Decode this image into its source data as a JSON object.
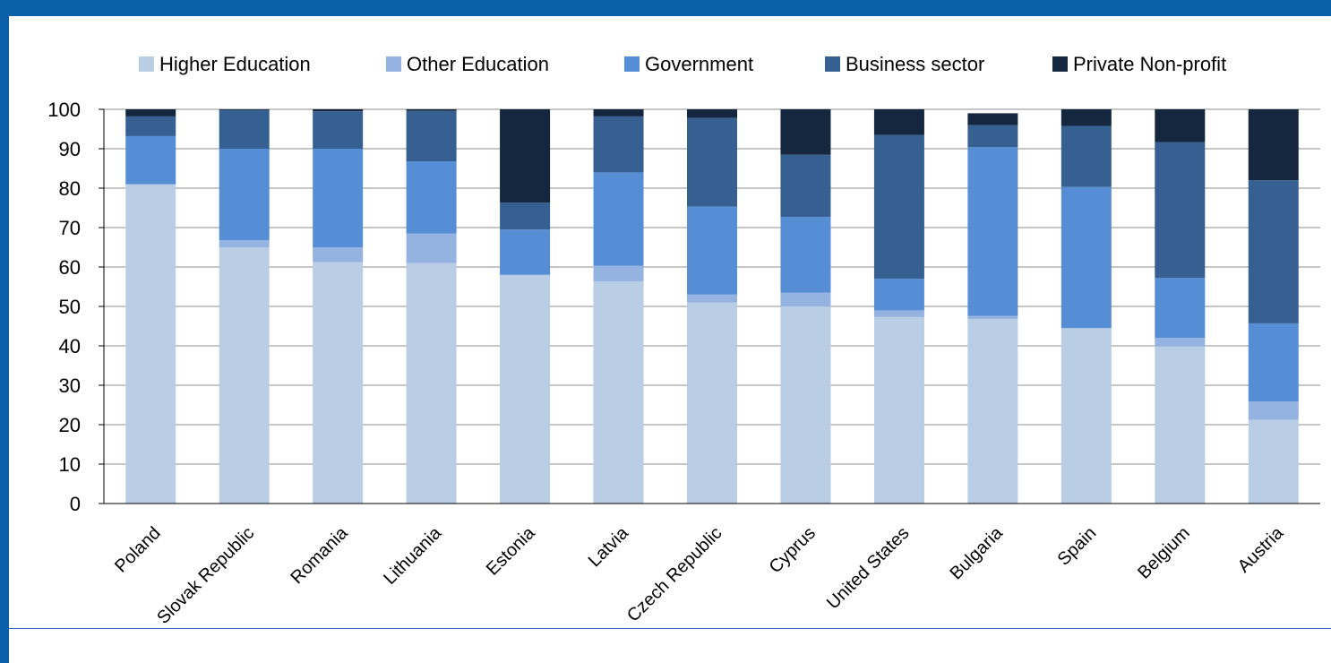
{
  "chart_data": {
    "type": "bar",
    "stacked": true,
    "categories": [
      "Poland",
      "Slovak Republic",
      "Romania",
      "Lithuania",
      "Estonia",
      "Latvia",
      "Czech Republic",
      "Cyprus",
      "United States",
      "Bulgaria",
      "Spain",
      "Belgium",
      "Austria"
    ],
    "series": [
      {
        "name": "Higher Education",
        "color": "#b9cde5",
        "values": [
          81,
          65,
          61.2,
          61,
          58,
          56.3,
          51,
          50,
          47.3,
          46.8,
          44.5,
          39.8,
          21.2
        ]
      },
      {
        "name": "Other Education",
        "color": "#95b3e0",
        "values": [
          0,
          1.8,
          3.8,
          7.5,
          0,
          4,
          2,
          3.5,
          1.7,
          0.8,
          0,
          2.2,
          4.7
        ]
      },
      {
        "name": "Government",
        "color": "#558ed5",
        "values": [
          12.2,
          23.2,
          25,
          18.3,
          11.5,
          23.7,
          22.3,
          19.2,
          8,
          42.8,
          35.8,
          15.2,
          19.8
        ]
      },
      {
        "name": "Business sector",
        "color": "#376092",
        "values": [
          5,
          9.8,
          9.5,
          12.8,
          6.8,
          14.2,
          22.5,
          15.8,
          36.5,
          5.6,
          15.5,
          34.5,
          36.3
        ]
      },
      {
        "name": "Private Non-profit",
        "color": "#14273f",
        "values": [
          1.8,
          0.2,
          0.5,
          0.4,
          23.7,
          1.8,
          2.2,
          11.5,
          6.5,
          3,
          4.2,
          8.3,
          18
        ]
      }
    ],
    "y_ticks": [
      "0",
      "10",
      "20",
      "30",
      "40",
      "50",
      "60",
      "70",
      "80",
      "90",
      "100"
    ],
    "ylim": [
      0,
      100
    ],
    "grid": true,
    "legend_position": "top"
  }
}
